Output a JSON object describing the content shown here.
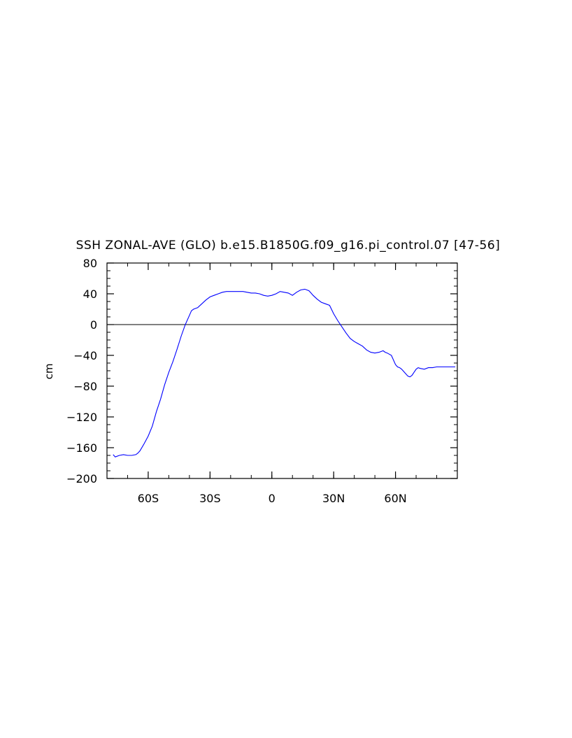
{
  "chart_data": {
    "type": "line",
    "title": "SSH ZONAL-AVE (GLO) b.e15.B1850G.f09_g16.pi_control.07 [47-56]",
    "xlabel": "",
    "ylabel": "cm",
    "xlim": [
      -80,
      90
    ],
    "ylim": [
      -200,
      80
    ],
    "x_ticks": [
      {
        "value": -60,
        "label": "60S"
      },
      {
        "value": -30,
        "label": "30S"
      },
      {
        "value": 0,
        "label": "0"
      },
      {
        "value": 30,
        "label": "30N"
      },
      {
        "value": 60,
        "label": "60N"
      }
    ],
    "y_ticks": [
      80,
      40,
      0,
      -40,
      -80,
      -120,
      -160,
      -200
    ],
    "grid": false,
    "reference_line": 0,
    "colors": {
      "series": "#0000ff",
      "reference": "#000000",
      "axes": "#000000"
    },
    "series": [
      {
        "x": [
          -77,
          -76,
          -74,
          -72,
          -70,
          -68,
          -66,
          -65,
          -64,
          -62,
          -60,
          -58,
          -56,
          -54,
          -52,
          -50,
          -48,
          -46,
          -44,
          -42,
          -40,
          -39,
          -38,
          -37,
          -36,
          -34,
          -32,
          -30,
          -28,
          -26,
          -24,
          -22,
          -20,
          -18,
          -16,
          -14,
          -12,
          -10,
          -8,
          -6,
          -4,
          -2,
          0,
          2,
          4,
          6,
          8,
          10,
          12,
          14,
          16,
          18,
          19,
          20,
          22,
          24,
          26,
          28,
          30,
          32,
          34,
          36,
          38,
          40,
          42,
          44,
          46,
          48,
          50,
          52,
          54,
          55,
          56,
          58,
          60,
          61,
          62,
          63,
          64,
          65,
          66,
          67,
          68,
          69,
          70,
          71,
          72,
          74,
          76,
          78,
          80,
          82,
          84,
          86,
          88,
          89
        ],
        "values": [
          -169,
          -172,
          -170,
          -169,
          -170,
          -170,
          -169,
          -167,
          -164,
          -155,
          -145,
          -132,
          -113,
          -97,
          -78,
          -62,
          -48,
          -32,
          -15,
          0,
          12,
          18,
          20,
          21,
          22,
          27,
          32,
          36,
          38,
          40,
          42,
          43,
          43,
          43,
          43,
          43,
          42,
          41,
          41,
          40,
          38,
          37,
          38,
          40,
          43,
          42,
          41,
          38,
          42,
          45,
          46,
          44,
          41,
          38,
          33,
          29,
          27,
          25,
          14,
          5,
          -3,
          -11,
          -18,
          -22,
          -25,
          -28,
          -33,
          -36,
          -37,
          -36,
          -34,
          -36,
          -37,
          -40,
          -52,
          -55,
          -56,
          -58,
          -61,
          -64,
          -67,
          -68,
          -66,
          -62,
          -58,
          -56,
          -57,
          -58,
          -56,
          -56,
          -55,
          -55,
          -55,
          -55,
          -55,
          -55
        ]
      }
    ]
  }
}
